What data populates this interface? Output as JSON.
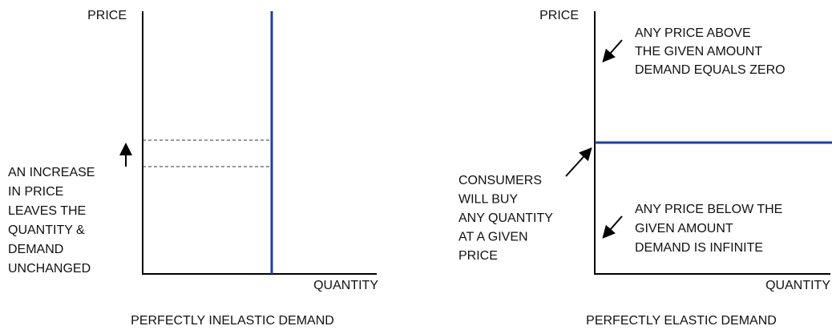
{
  "panels": [
    {
      "price_label": "PRICE",
      "quantity_label": "QUANTITY",
      "caption": "PERFECTLY INELASTIC DEMAND",
      "note": [
        "AN INCREASE",
        "IN PRICE",
        "LEAVES THE",
        "QUANTITY &",
        "DEMAND",
        "UNCHANGED"
      ]
    },
    {
      "price_label": "PRICE",
      "quantity_label": "QUANTITY",
      "caption": "PERFECTLY ELASTIC DEMAND",
      "note_above": [
        "ANY PRICE ABOVE",
        "THE GIVEN AMOUNT",
        "DEMAND EQUALS ZERO"
      ],
      "note_left": [
        "CONSUMERS",
        "WILL BUY",
        "ANY QUANTITY",
        "AT A GIVEN",
        "PRICE"
      ],
      "note_below": [
        "ANY PRICE BELOW THE",
        "GIVEN AMOUNT",
        "DEMAND IS INFINITE"
      ]
    }
  ]
}
